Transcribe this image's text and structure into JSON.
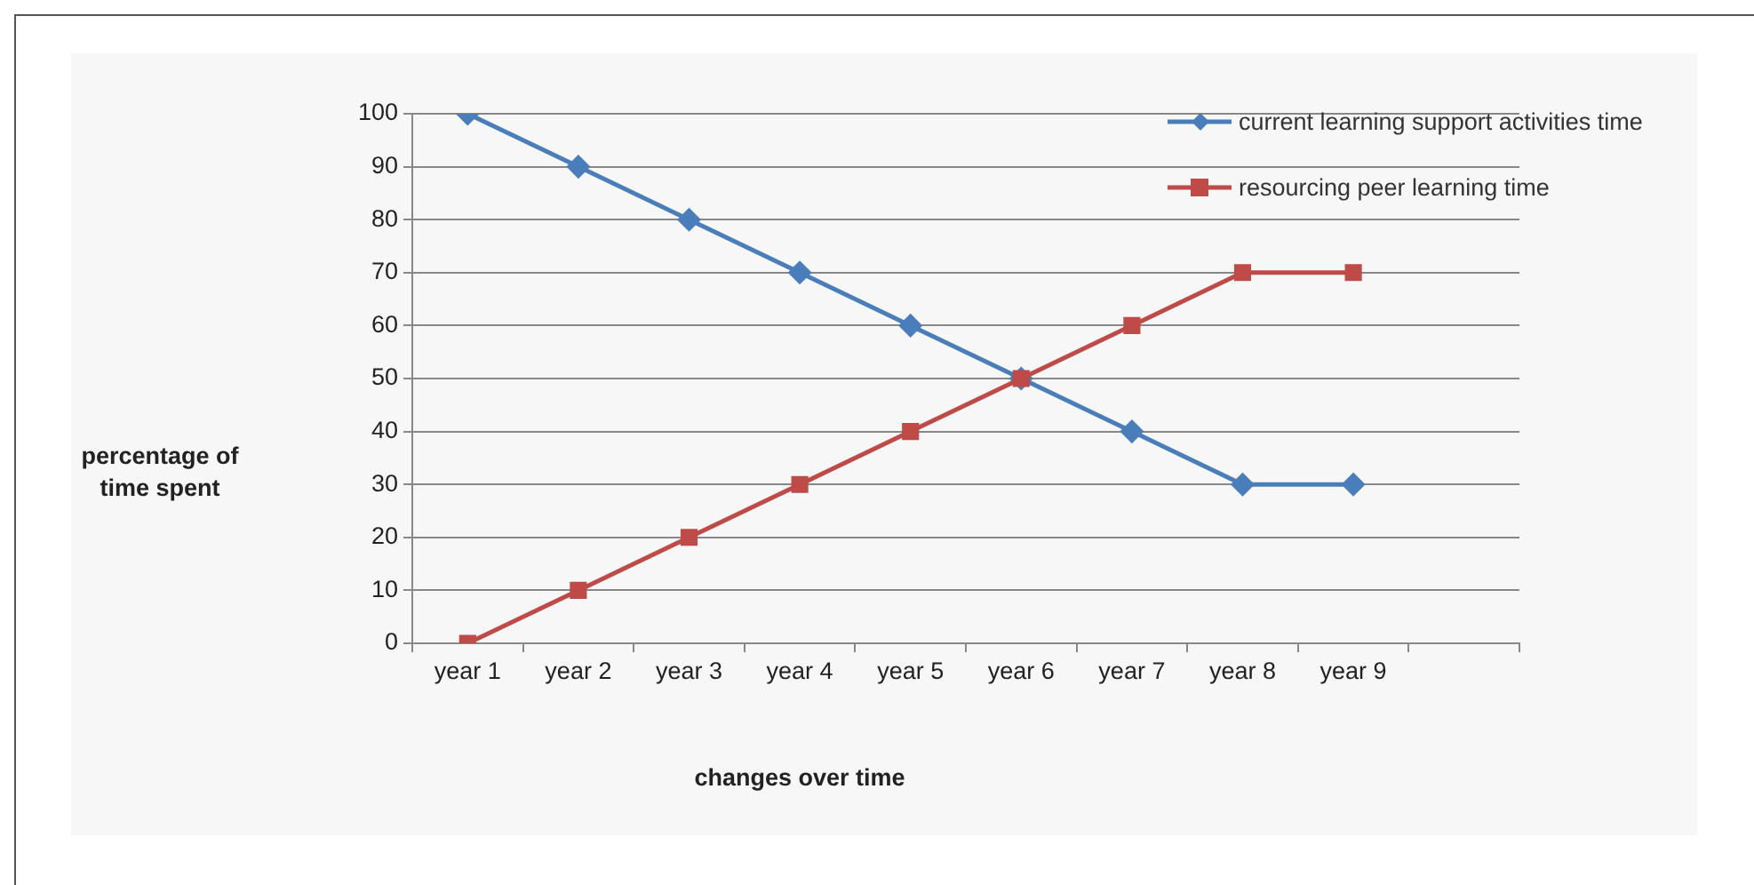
{
  "chart_data": {
    "type": "line",
    "xlabel": "changes over time",
    "ylabel": "percentage of time spent",
    "categories": [
      "year 1",
      "year 2",
      "year 3",
      "year 4",
      "year 5",
      "year 6",
      "year 7",
      "year 8",
      "year 9",
      null
    ],
    "series": [
      {
        "name": "current learning support activities time",
        "color": "#4a7ebb",
        "marker": "diamond",
        "values": [
          100,
          90,
          80,
          70,
          60,
          50,
          40,
          30,
          30,
          null
        ]
      },
      {
        "name": "resourcing peer learning time",
        "color": "#be4b48",
        "marker": "square",
        "values": [
          0,
          10,
          20,
          30,
          40,
          50,
          60,
          70,
          70,
          null
        ]
      }
    ],
    "ylim": [
      0,
      100
    ],
    "yticks": [
      0,
      10,
      20,
      30,
      40,
      50,
      60,
      70,
      80,
      90,
      100
    ],
    "grid": "y",
    "legend": "top right",
    "line_style": "solid"
  }
}
